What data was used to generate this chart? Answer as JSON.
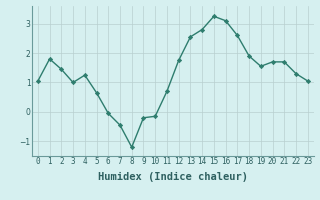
{
  "xlabel": "Humidex (Indice chaleur)",
  "x": [
    0,
    1,
    2,
    3,
    4,
    5,
    6,
    7,
    8,
    9,
    10,
    11,
    12,
    13,
    14,
    15,
    16,
    17,
    18,
    19,
    20,
    21,
    22,
    23
  ],
  "y": [
    1.05,
    1.8,
    1.45,
    1.0,
    1.25,
    0.65,
    -0.05,
    -0.45,
    -1.2,
    -0.2,
    -0.15,
    0.7,
    1.75,
    2.55,
    2.8,
    3.25,
    3.1,
    2.6,
    1.9,
    1.55,
    1.7,
    1.7,
    1.3,
    1.05
  ],
  "line_color": "#2e7d6e",
  "marker": "D",
  "marker_size": 2.2,
  "bg_color": "#d6f0f0",
  "grid_color": "#b8d0d0",
  "xlim": [
    -0.5,
    23.5
  ],
  "ylim": [
    -1.5,
    3.6
  ],
  "yticks": [
    -1,
    0,
    1,
    2,
    3
  ],
  "xticks": [
    0,
    1,
    2,
    3,
    4,
    5,
    6,
    7,
    8,
    9,
    10,
    11,
    12,
    13,
    14,
    15,
    16,
    17,
    18,
    19,
    20,
    21,
    22,
    23
  ],
  "xtick_labels": [
    "0",
    "1",
    "2",
    "3",
    "4",
    "5",
    "6",
    "7",
    "8",
    "9",
    "10",
    "11",
    "12",
    "13",
    "14",
    "15",
    "16",
    "17",
    "18",
    "19",
    "20",
    "21",
    "22",
    "23"
  ],
  "tick_fontsize": 5.5,
  "xlabel_fontsize": 7.5,
  "line_width": 1.0,
  "spine_color": "#6a9a9a",
  "tick_color": "#2e6060"
}
